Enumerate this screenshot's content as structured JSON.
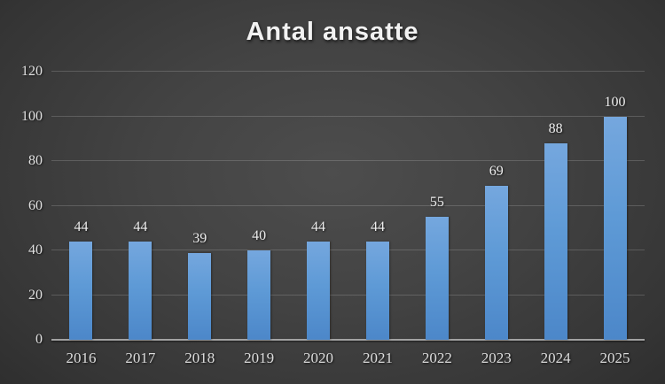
{
  "title": "Antal ansatte",
  "colors": {
    "background_center": "#4d4d4d",
    "background_edge": "#262626",
    "bar_top": "#75a7de",
    "bar_bottom": "#4c87c9",
    "gridline": "rgba(255,255,255,0.17)",
    "axis_line": "#a2a2a2",
    "title_text": "#f2f2f2",
    "label_text": "#e0e0e0"
  },
  "chart_data": {
    "type": "bar",
    "title": "Antal ansatte",
    "categories": [
      "2016",
      "2017",
      "2018",
      "2019",
      "2020",
      "2021",
      "2022",
      "2023",
      "2024",
      "2025"
    ],
    "values": [
      44,
      44,
      39,
      40,
      44,
      44,
      55,
      69,
      88,
      100
    ],
    "data_labels": [
      44,
      44,
      39,
      40,
      44,
      44,
      55,
      69,
      88,
      100
    ],
    "y_ticks": [
      0,
      20,
      40,
      60,
      80,
      100,
      120
    ],
    "ylim": [
      0,
      120
    ],
    "xlabel": "",
    "ylabel": "",
    "grid": true,
    "legend": false,
    "series_color": "#5b9bd5"
  }
}
